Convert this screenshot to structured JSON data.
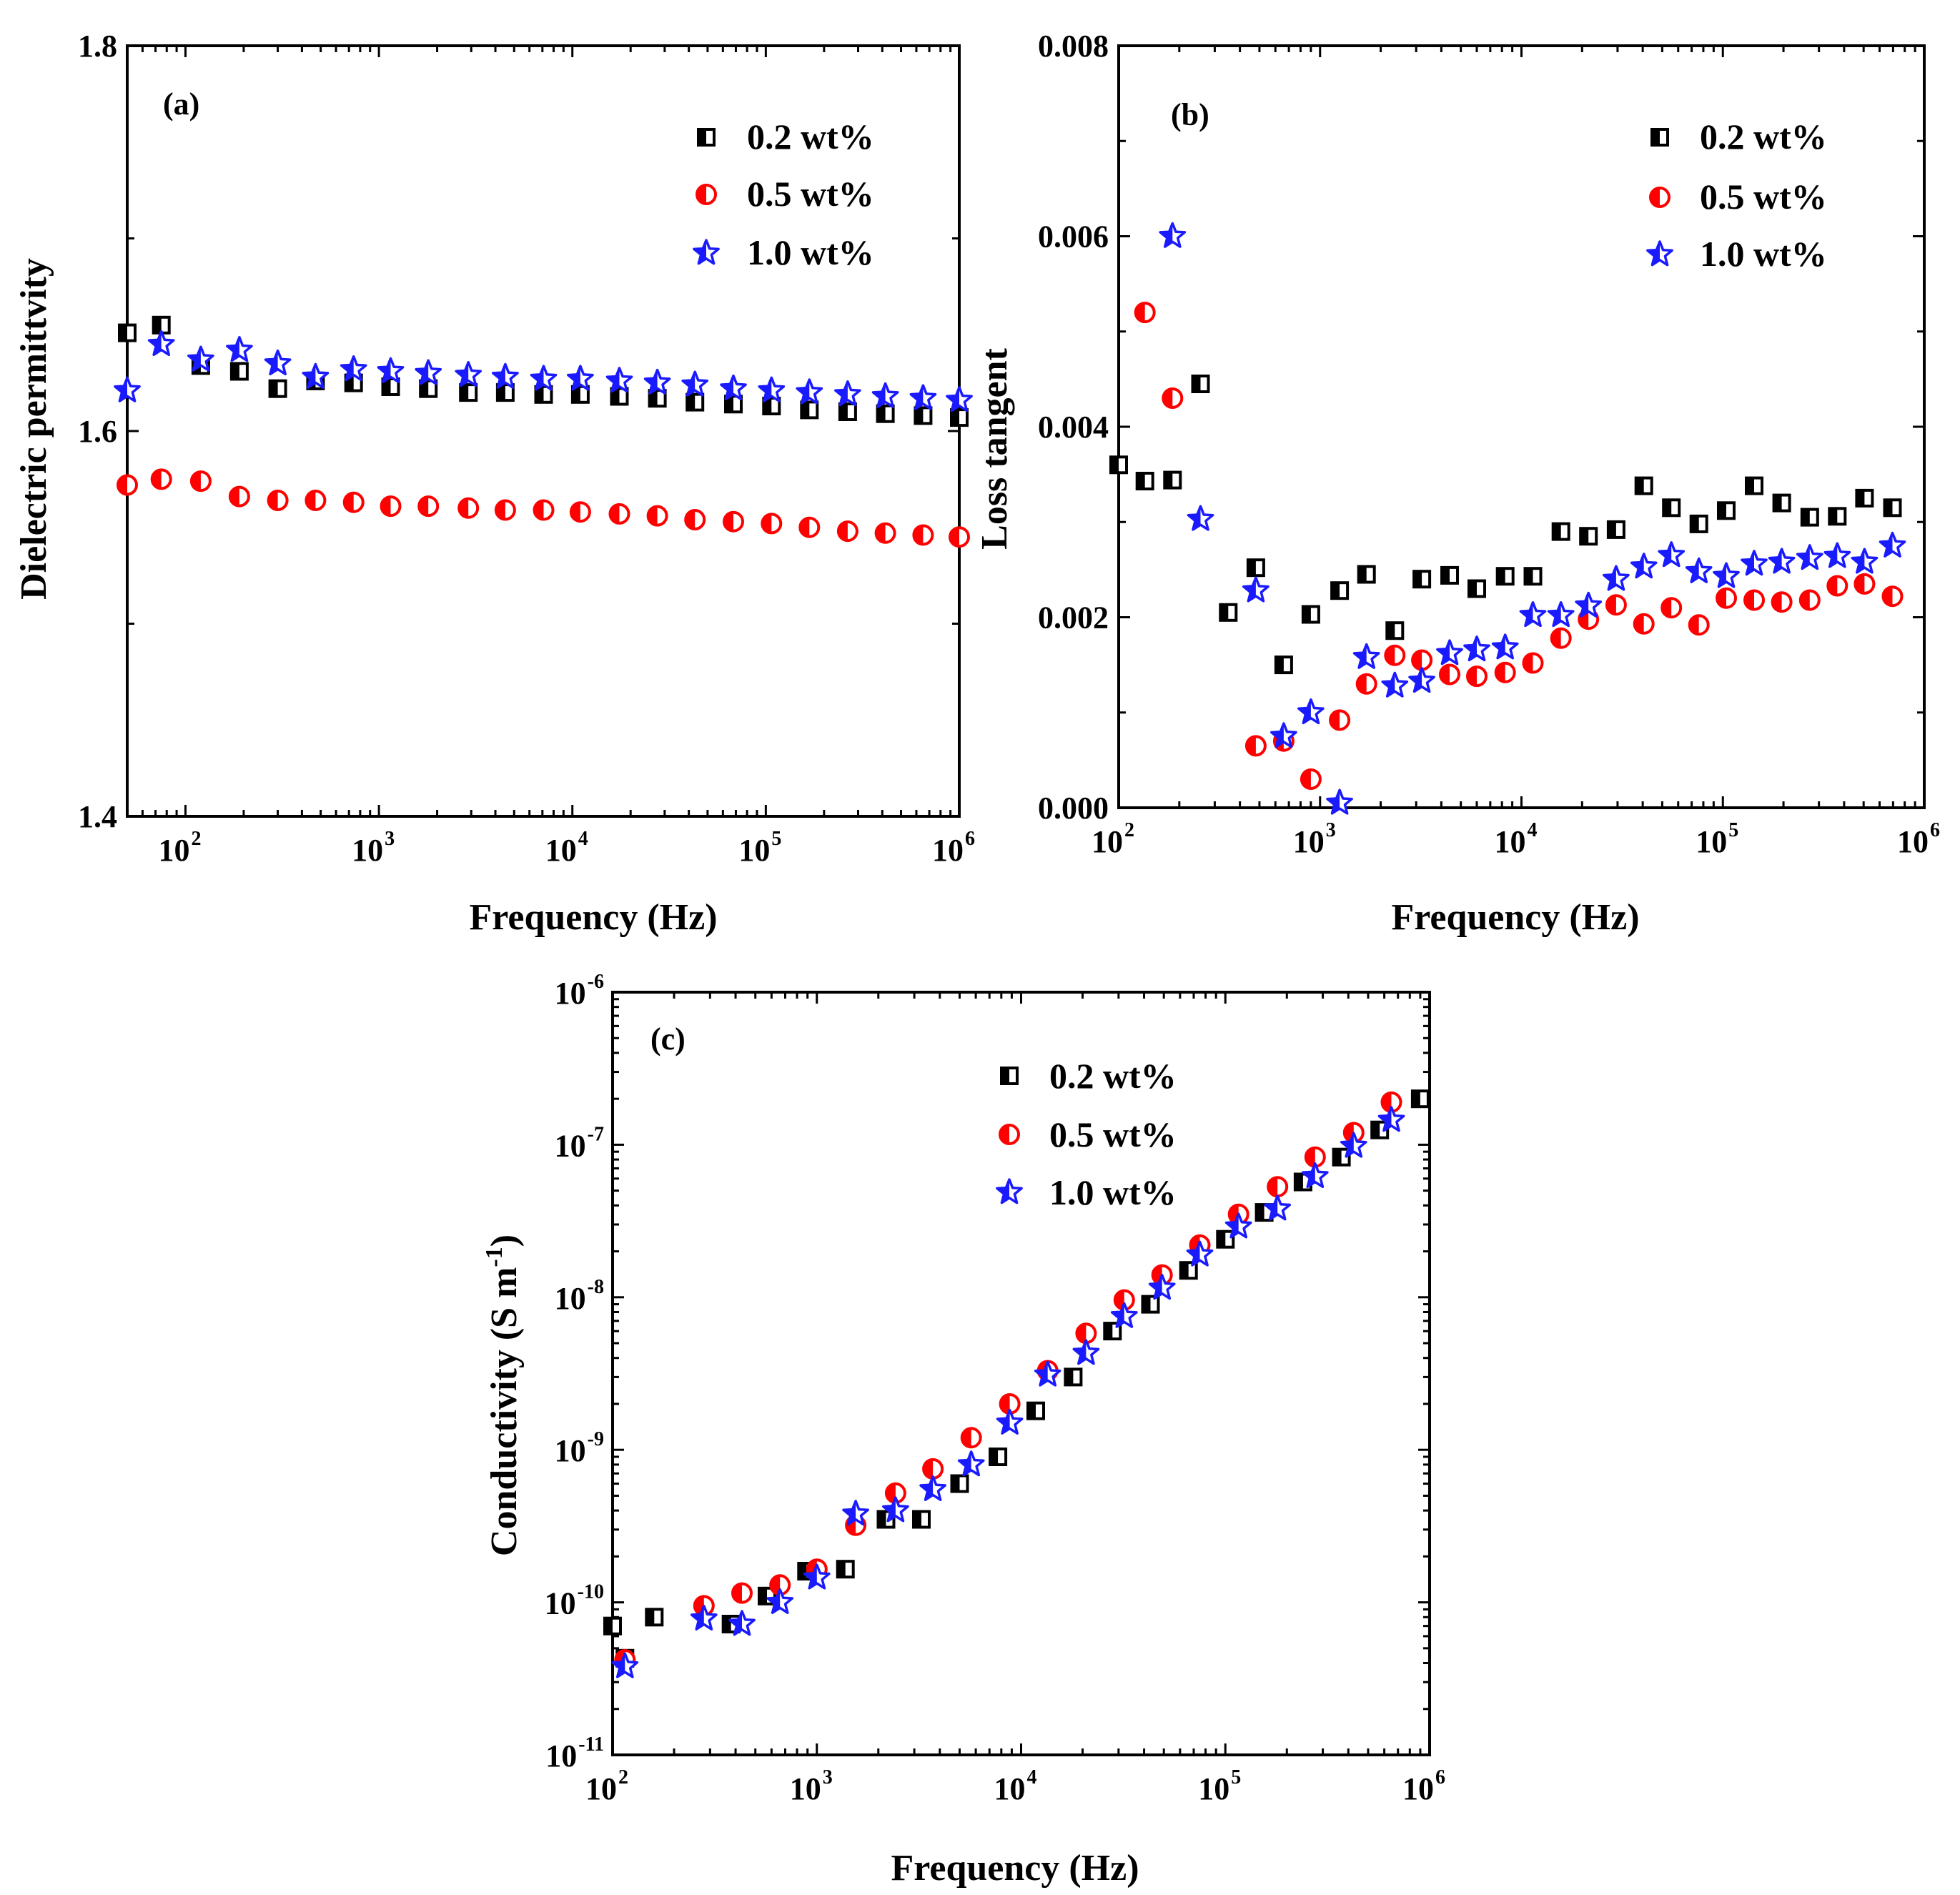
{
  "chart_data": [
    {
      "type": "scatter",
      "panel_label": "(a)",
      "xlabel": "Frequency (Hz)",
      "ylabel": "Dielectric permittvity",
      "xscale": "log",
      "xlim": [
        50,
        1000000
      ],
      "ylim": [
        1.4,
        1.8
      ],
      "x_ticks": [
        {
          "base": "10",
          "exp": "2",
          "value": 100
        },
        {
          "base": "10",
          "exp": "3",
          "value": 1000
        },
        {
          "base": "10",
          "exp": "4",
          "value": 10000
        },
        {
          "base": "10",
          "exp": "5",
          "value": 100000
        },
        {
          "base": "10",
          "exp": "6",
          "value": 1000000
        }
      ],
      "y_ticks": [
        {
          "label": "1.4",
          "value": 1.4
        },
        {
          "label": "1.6",
          "value": 1.6
        },
        {
          "label": "1.8",
          "value": 1.8
        }
      ],
      "legend_position": "top-right",
      "series": [
        {
          "name": "0.2 wt%",
          "marker": "half-square",
          "color": "#000000",
          "x": [
            50,
            75,
            120,
            190,
            300,
            470,
            740,
            1150,
            1800,
            2900,
            4500,
            7100,
            11000,
            17500,
            27500,
            43000,
            68000,
            107000,
            168000,
            265000,
            415000,
            650000,
            1000000
          ],
          "y": [
            1.651,
            1.655,
            1.634,
            1.631,
            1.622,
            1.626,
            1.625,
            1.623,
            1.622,
            1.62,
            1.62,
            1.619,
            1.619,
            1.618,
            1.617,
            1.615,
            1.614,
            1.613,
            1.611,
            1.61,
            1.609,
            1.608,
            1.607
          ]
        },
        {
          "name": "0.5 wt%",
          "marker": "half-circle",
          "color": "#ff0000",
          "x": [
            50,
            75,
            120,
            190,
            300,
            470,
            740,
            1150,
            1800,
            2900,
            4500,
            7100,
            11000,
            17500,
            27500,
            43000,
            68000,
            107000,
            168000,
            265000,
            415000,
            650000,
            1000000
          ],
          "y": [
            1.572,
            1.575,
            1.574,
            1.566,
            1.564,
            1.564,
            1.563,
            1.561,
            1.561,
            1.56,
            1.559,
            1.559,
            1.558,
            1.557,
            1.556,
            1.554,
            1.553,
            1.552,
            1.55,
            1.548,
            1.547,
            1.546,
            1.545
          ]
        },
        {
          "name": "1.0 wt%",
          "marker": "star",
          "color": "#1a1aff",
          "x": [
            50,
            75,
            120,
            190,
            300,
            470,
            740,
            1150,
            1800,
            2900,
            4500,
            7100,
            11000,
            17500,
            27500,
            43000,
            68000,
            107000,
            168000,
            265000,
            415000,
            650000,
            1000000
          ],
          "y": [
            1.621,
            1.645,
            1.637,
            1.642,
            1.635,
            1.628,
            1.632,
            1.631,
            1.63,
            1.629,
            1.628,
            1.627,
            1.627,
            1.626,
            1.625,
            1.624,
            1.622,
            1.621,
            1.62,
            1.619,
            1.618,
            1.617,
            1.616
          ]
        }
      ]
    },
    {
      "type": "scatter",
      "panel_label": "(b)",
      "xlabel": "Frequency (Hz)",
      "ylabel": "Loss tangent",
      "xscale": "log",
      "xlim": [
        100,
        1000000
      ],
      "ylim": [
        0,
        0.008
      ],
      "x_ticks": [
        {
          "base": "10",
          "exp": "2",
          "value": 100
        },
        {
          "base": "10",
          "exp": "3",
          "value": 1000
        },
        {
          "base": "10",
          "exp": "4",
          "value": 10000
        },
        {
          "base": "10",
          "exp": "5",
          "value": 100000
        },
        {
          "base": "10",
          "exp": "6",
          "value": 1000000
        }
      ],
      "y_ticks": [
        {
          "label": "0.000",
          "value": 0
        },
        {
          "label": "0.002",
          "value": 0.002
        },
        {
          "label": "0.004",
          "value": 0.004
        },
        {
          "label": "0.006",
          "value": 0.006
        },
        {
          "label": "0.008",
          "value": 0.008
        }
      ],
      "legend_position": "top-right",
      "series": [
        {
          "name": "0.2 wt%",
          "marker": "half-square",
          "color": "#000000",
          "x": [
            100,
            135,
            185,
            255,
            350,
            480,
            660,
            900,
            1250,
            1700,
            2350,
            3200,
            4400,
            6000,
            8300,
            11400,
            15700,
            21500,
            29500,
            40500,
            55500,
            76000,
            104000,
            143000,
            196000,
            270000,
            370000,
            505000,
            695000
          ],
          "y": [
            0.0036,
            0.00343,
            0.00344,
            0.00445,
            0.00205,
            0.00252,
            0.0015,
            0.00203,
            0.00228,
            0.00245,
            0.00186,
            0.0024,
            0.00244,
            0.0023,
            0.00243,
            0.00243,
            0.0029,
            0.00285,
            0.00292,
            0.00338,
            0.00315,
            0.00298,
            0.00312,
            0.00338,
            0.0032,
            0.00305,
            0.00306,
            0.00325,
            0.00315
          ]
        },
        {
          "name": "0.5 wt%",
          "marker": "half-circle",
          "color": "#ff0000",
          "x": [
            135,
            185,
            480,
            660,
            900,
            1250,
            1700,
            2350,
            3200,
            4400,
            6000,
            8300,
            11400,
            15700,
            21500,
            29500,
            40500,
            55500,
            76000,
            104000,
            143000,
            196000,
            270000,
            370000,
            505000,
            695000
          ],
          "y": [
            0.0052,
            0.0043,
            0.00065,
            0.0007,
            0.0003,
            0.00092,
            0.0013,
            0.0016,
            0.00155,
            0.0014,
            0.00138,
            0.00142,
            0.00152,
            0.00178,
            0.00198,
            0.00213,
            0.00193,
            0.0021,
            0.00192,
            0.0022,
            0.00218,
            0.00216,
            0.00218,
            0.00233,
            0.00235,
            0.00222
          ]
        },
        {
          "name": "1.0 wt%",
          "marker": "star",
          "color": "#1a1aff",
          "x": [
            185,
            255,
            480,
            660,
            900,
            1250,
            1700,
            2350,
            3200,
            4400,
            6000,
            8300,
            11400,
            15700,
            21500,
            29500,
            40500,
            55500,
            76000,
            104000,
            143000,
            196000,
            270000,
            370000,
            505000,
            695000
          ],
          "y": [
            0.006,
            0.00303,
            0.00228,
            0.00075,
            0.001,
            5e-05,
            0.00158,
            0.00128,
            0.00133,
            0.00162,
            0.00166,
            0.00168,
            0.00202,
            0.00202,
            0.00212,
            0.0024,
            0.00253,
            0.00265,
            0.00248,
            0.00243,
            0.00256,
            0.00258,
            0.00262,
            0.00264,
            0.00258,
            0.00275
          ]
        }
      ]
    },
    {
      "type": "scatter",
      "panel_label": "(c)",
      "xlabel": "Frequency (Hz)",
      "ylabel": "Conductivity (S m",
      "ylabel_exp": "-1",
      "ylabel_end": ")",
      "xscale": "log",
      "yscale": "log",
      "xlim": [
        100,
        1000000
      ],
      "ylim": [
        1e-11,
        1e-06
      ],
      "x_ticks": [
        {
          "base": "10",
          "exp": "2",
          "value": 100
        },
        {
          "base": "10",
          "exp": "3",
          "value": 1000
        },
        {
          "base": "10",
          "exp": "4",
          "value": 10000
        },
        {
          "base": "10",
          "exp": "5",
          "value": 100000
        },
        {
          "base": "10",
          "exp": "6",
          "value": 1000000
        }
      ],
      "y_ticks": [
        {
          "base": "10",
          "exp": "-11",
          "value": 1e-11
        },
        {
          "base": "10",
          "exp": "-10",
          "value": 1e-10
        },
        {
          "base": "10",
          "exp": "-9",
          "value": 1e-09
        },
        {
          "base": "10",
          "exp": "-8",
          "value": 1e-08
        },
        {
          "base": "10",
          "exp": "-7",
          "value": 1e-07
        },
        {
          "base": "10",
          "exp": "-6",
          "value": 1e-06
        }
      ],
      "legend_position": "top-center",
      "series": [
        {
          "name": "0.2 wt%",
          "marker": "half-square",
          "color": "#000000",
          "x": [
            100,
            115,
            160,
            380,
            570,
            890,
            1380,
            2180,
            3250,
            5000,
            7700,
            11800,
            18000,
            28000,
            43000,
            66000,
            100000,
            155000,
            240000,
            370000,
            570000,
            900000
          ],
          "y": [
            7e-11,
            4.3e-11,
            8e-11,
            7.2e-11,
            1.1e-10,
            1.6e-10,
            1.65e-10,
            3.5e-10,
            3.5e-10,
            6e-10,
            9e-10,
            1.8e-09,
            3e-09,
            6e-09,
            9e-09,
            1.5e-08,
            2.4e-08,
            3.6e-08,
            5.7e-08,
            8.3e-08,
            1.25e-07,
            2e-07
          ]
        },
        {
          "name": "0.5 wt%",
          "marker": "half-circle",
          "color": "#ff0000",
          "x": [
            115,
            280,
            430,
            660,
            1000,
            1550,
            2430,
            3700,
            5700,
            8800,
            13500,
            20800,
            32000,
            49000,
            75000,
            116000,
            180000,
            275000,
            425000,
            650000
          ],
          "y": [
            4.2e-11,
            9.5e-11,
            1.15e-10,
            1.3e-10,
            1.65e-10,
            3.2e-10,
            5.2e-10,
            7.5e-10,
            1.2e-09,
            2e-09,
            3.3e-09,
            5.8e-09,
            9.6e-09,
            1.4e-08,
            2.2e-08,
            3.5e-08,
            5.3e-08,
            8.3e-08,
            1.2e-07,
            1.9e-07
          ]
        },
        {
          "name": "1.0 wt%",
          "marker": "star",
          "color": "#1a1aff",
          "x": [
            115,
            280,
            430,
            660,
            1000,
            1550,
            2430,
            3700,
            5700,
            8800,
            13500,
            20800,
            32000,
            49000,
            75000,
            116000,
            180000,
            275000,
            425000,
            650000
          ],
          "y": [
            3.8e-11,
            7.8e-11,
            7.2e-11,
            1e-10,
            1.45e-10,
            3.8e-10,
            4e-10,
            5.5e-10,
            8e-10,
            1.5e-09,
            3.1e-09,
            4.3e-09,
            7.5e-09,
            1.15e-08,
            1.9e-08,
            2.9e-08,
            3.8e-08,
            6.2e-08,
            9.8e-08,
            1.45e-07
          ]
        }
      ]
    }
  ]
}
